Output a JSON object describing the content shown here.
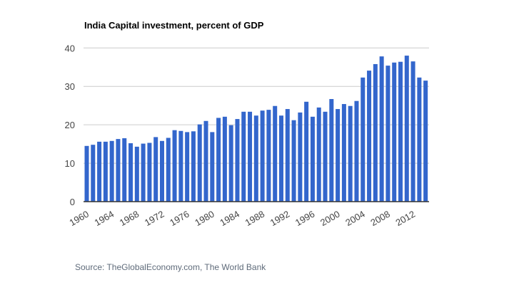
{
  "chart_data": {
    "type": "bar",
    "title": "India Capital investment, percent of GDP",
    "xlabel": "",
    "ylabel": "",
    "ylim": [
      0,
      40
    ],
    "yticks": [
      0,
      10,
      20,
      30,
      40
    ],
    "xtick_labels": [
      "1960",
      "1964",
      "1968",
      "1972",
      "1976",
      "1980",
      "1984",
      "1988",
      "1992",
      "1996",
      "2000",
      "2004",
      "2008",
      "2012"
    ],
    "grid": true,
    "legend": "none",
    "bar_color": "#3366cc",
    "categories": [
      "1960",
      "1961",
      "1962",
      "1963",
      "1964",
      "1965",
      "1966",
      "1967",
      "1968",
      "1969",
      "1970",
      "1971",
      "1972",
      "1973",
      "1974",
      "1975",
      "1976",
      "1977",
      "1978",
      "1979",
      "1980",
      "1981",
      "1982",
      "1983",
      "1984",
      "1985",
      "1986",
      "1987",
      "1988",
      "1989",
      "1990",
      "1991",
      "1992",
      "1993",
      "1994",
      "1995",
      "1996",
      "1997",
      "1998",
      "1999",
      "2000",
      "2001",
      "2002",
      "2003",
      "2004",
      "2005",
      "2006",
      "2007",
      "2008",
      "2009",
      "2010",
      "2011",
      "2012",
      "2013",
      "2014"
    ],
    "values": [
      14.5,
      14.8,
      15.6,
      15.6,
      15.8,
      16.3,
      16.5,
      15.2,
      14.3,
      15.1,
      15.3,
      16.8,
      15.8,
      16.6,
      18.6,
      18.4,
      18.1,
      18.3,
      20.1,
      21.0,
      18.1,
      21.8,
      22.1,
      19.9,
      21.5,
      23.4,
      23.4,
      22.4,
      23.7,
      23.9,
      24.9,
      22.4,
      24.1,
      21.2,
      23.2,
      26.0,
      22.1,
      24.5,
      23.4,
      26.7,
      24.1,
      25.4,
      24.9,
      26.2,
      32.3,
      34.1,
      35.8,
      37.8,
      35.4,
      36.2,
      36.4,
      38.0,
      36.5,
      32.3,
      31.5
    ]
  },
  "source": "Source: TheGlobalEconomy.com, The World Bank"
}
